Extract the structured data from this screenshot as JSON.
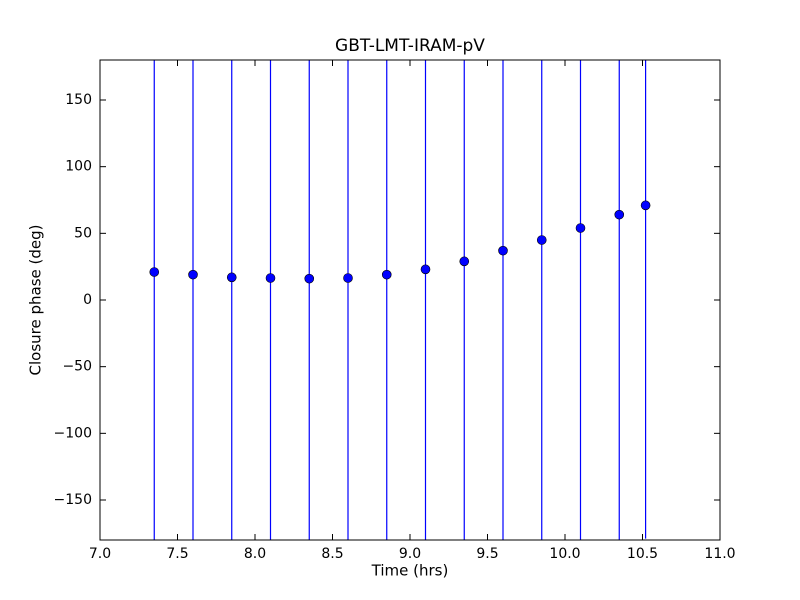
{
  "chart_data": {
    "type": "scatter",
    "title": "GBT-LMT-IRAM-pV",
    "xlabel": "Time (hrs)",
    "ylabel": "Closure phase (deg)",
    "x": [
      7.35,
      7.6,
      7.85,
      8.1,
      8.35,
      8.6,
      8.85,
      9.1,
      9.35,
      9.6,
      9.85,
      10.1,
      10.35,
      10.52
    ],
    "values": [
      21,
      19,
      17,
      16.5,
      16,
      16.5,
      19,
      23,
      29,
      37,
      45,
      54,
      64,
      71
    ],
    "errors": [
      250,
      250,
      250,
      250,
      250,
      250,
      250,
      250,
      250,
      250,
      250,
      250,
      250,
      250
    ],
    "color": "#0000ff",
    "xlim": [
      7,
      11
    ],
    "xticks": [
      {
        "value": 7,
        "label": "7.0"
      },
      {
        "value": 7.5,
        "label": "7.5"
      },
      {
        "value": 8,
        "label": "8.0"
      },
      {
        "value": 8.5,
        "label": "8.5"
      },
      {
        "value": 9,
        "label": "9.0"
      },
      {
        "value": 9.5,
        "label": "9.5"
      },
      {
        "value": 10,
        "label": "10.0"
      },
      {
        "value": 10.5,
        "label": "10.5"
      },
      {
        "value": 11,
        "label": "11.0"
      }
    ],
    "ylim": [
      -180,
      180
    ],
    "yticks": [
      {
        "value": -150,
        "label": "−150"
      },
      {
        "value": -100,
        "label": "−100"
      },
      {
        "value": -50,
        "label": "−50"
      },
      0,
      50,
      100,
      150
    ],
    "grid": false
  }
}
